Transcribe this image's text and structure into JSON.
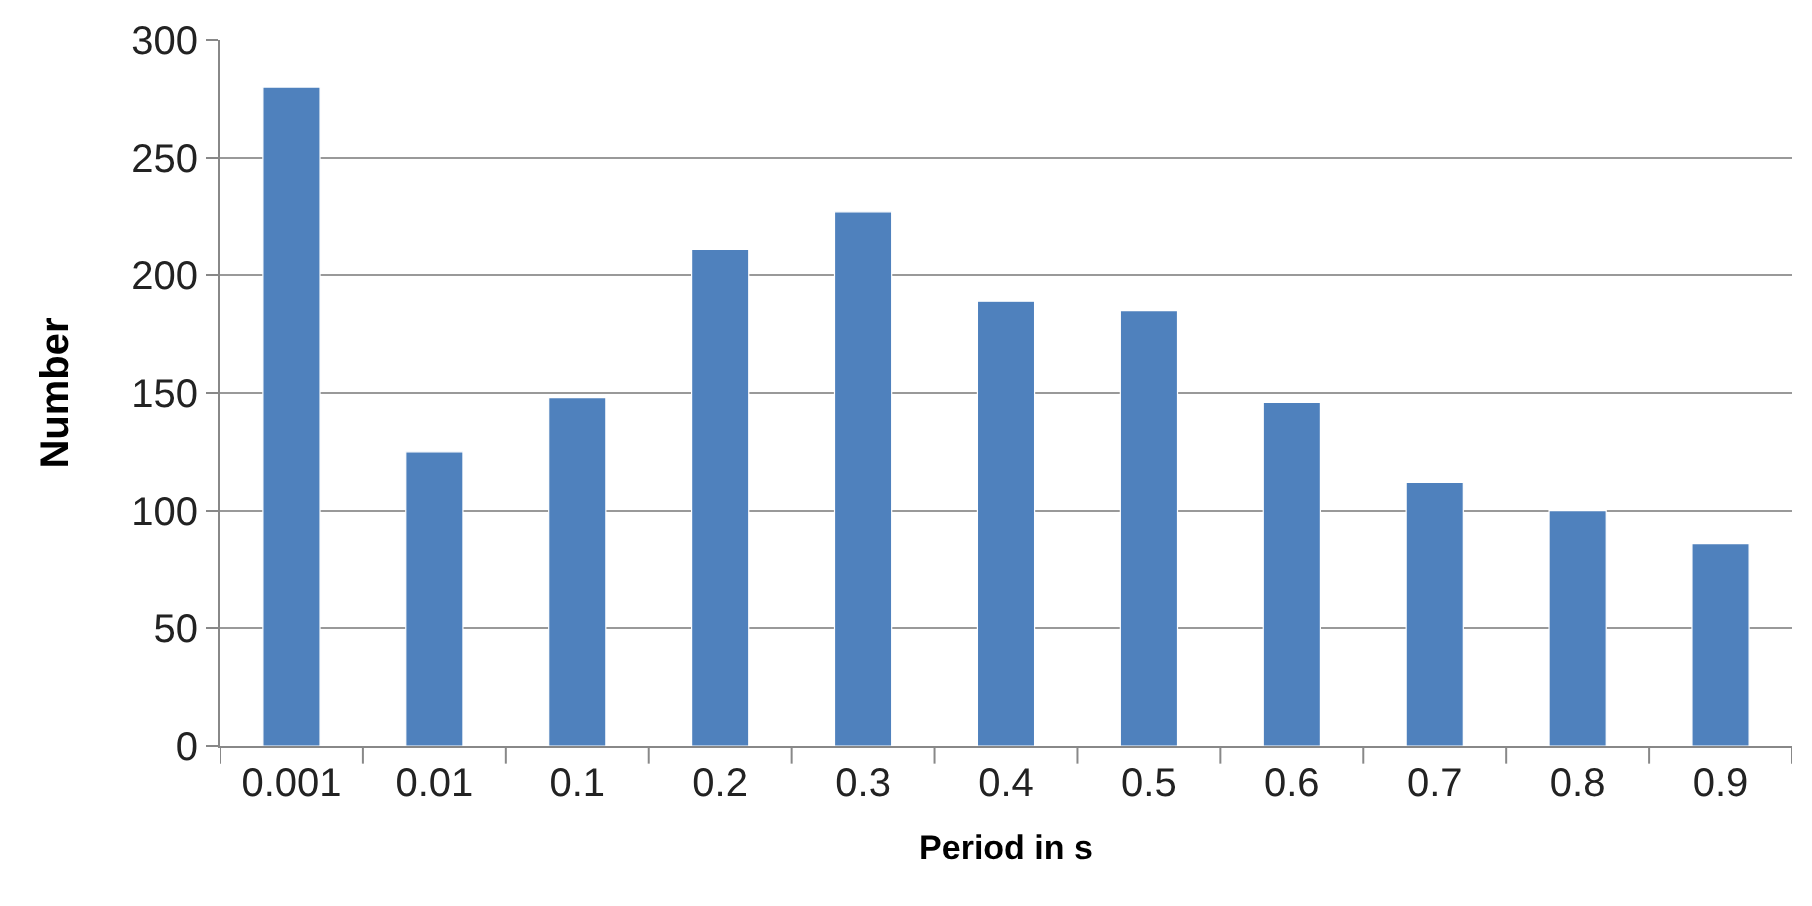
{
  "chart_data": {
    "type": "bar",
    "xlabel": "Period in s",
    "ylabel": "Number",
    "categories": [
      "0.001",
      "0.01",
      "0.1",
      "0.2",
      "0.3",
      "0.4",
      "0.5",
      "0.6",
      "0.7",
      "0.8",
      "0.9"
    ],
    "values": [
      280,
      125,
      148,
      211,
      227,
      189,
      185,
      146,
      112,
      100,
      86
    ],
    "color": "#4f81bd",
    "ylim": [
      0,
      300
    ],
    "yticks": [
      0,
      50,
      100,
      150,
      200,
      250,
      300
    ],
    "grid": "y",
    "legend": false
  }
}
